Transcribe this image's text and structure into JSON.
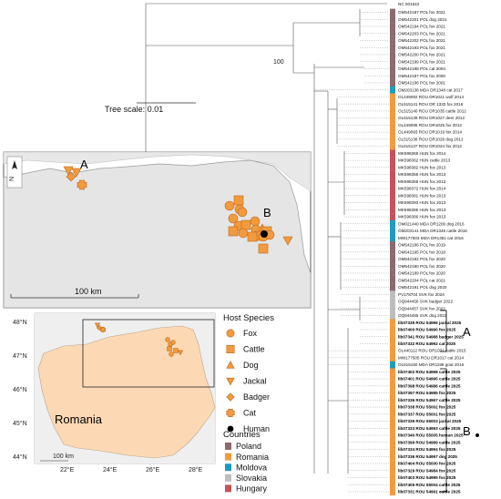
{
  "tree": {
    "root_label": "NC 001542",
    "scale_label": "Tree scale: 0.01",
    "tips": [
      {
        "label": "OM542187 POL fox 2021",
        "country": "Poland",
        "bold": false
      },
      {
        "label": "OM542201 POL dog 2021",
        "country": "Poland",
        "bold": false
      },
      {
        "label": "OM542194 POL fox 2021",
        "country": "Poland",
        "bold": false
      },
      {
        "label": "OM542203 POL fox 2021",
        "country": "Poland",
        "bold": false
      },
      {
        "label": "OM542202 POL fox 2021",
        "country": "Poland",
        "bold": false
      },
      {
        "label": "OM542193 POL fox 2021",
        "country": "Poland",
        "bold": false
      },
      {
        "label": "OM542200 POL fox 2021",
        "country": "Poland",
        "bold": false
      },
      {
        "label": "OM542199 POL fox 2021",
        "country": "Poland",
        "bold": false
      },
      {
        "label": "OM542198 POL cat 2004",
        "country": "Poland",
        "bold": false
      },
      {
        "label": "OM542197 POL fox 2000",
        "country": "Poland",
        "bold": false
      },
      {
        "label": "OM542196 POL fox 2001",
        "country": "Poland",
        "bold": false
      },
      {
        "label": "OM203138 MDA DR1348 cat 2017",
        "country": "Moldova",
        "bold": false
      },
      {
        "label": "OL449092 ROU DR1021 wolf 2014",
        "country": "Romania",
        "bold": false
      },
      {
        "label": "OL515141 ROU DR 1333 fox 2016",
        "country": "Romania",
        "bold": false
      },
      {
        "label": "OL515140 ROU DR1035 cattle 2012",
        "country": "Romania",
        "bold": false
      },
      {
        "label": "OL515139 ROU DR1027 deer 2012",
        "country": "Romania",
        "bold": false
      },
      {
        "label": "OL449095 ROU DR1025 fox 2012",
        "country": "Romania",
        "bold": false
      },
      {
        "label": "OL449093 ROU DR1019 fox 2014",
        "country": "Romania",
        "bold": false
      },
      {
        "label": "OL515138 ROU DR1026 dog 2012",
        "country": "Romania",
        "bold": false
      },
      {
        "label": "OL515137 ROU DR1024 fox 2012",
        "country": "Romania",
        "bold": false
      },
      {
        "label": "MK598368 HUN fox 2014",
        "country": "Hungary",
        "bold": false
      },
      {
        "label": "MK598362 HUN cattle 2013",
        "country": "Hungary",
        "bold": false
      },
      {
        "label": "MK598382 HUN fox 2013",
        "country": "Hungary",
        "bold": false
      },
      {
        "label": "MK598356 HUN fox 2013",
        "country": "Hungary",
        "bold": false
      },
      {
        "label": "MK598358 HUN fox 2013",
        "country": "Hungary",
        "bold": false
      },
      {
        "label": "MK598372 HUN fox 2014",
        "country": "Hungary",
        "bold": false
      },
      {
        "label": "MK598381 HUN fox 2013",
        "country": "Hungary",
        "bold": false
      },
      {
        "label": "MK598393 HUN fox 2013",
        "country": "Hungary",
        "bold": false
      },
      {
        "label": "MK598385 HUN fox 2013",
        "country": "Hungary",
        "bold": false
      },
      {
        "label": "MK598386 HUN fox 2013",
        "country": "Hungary",
        "bold": false
      },
      {
        "label": "OM021440 MDA DR1200 dog 2016",
        "country": "Moldova",
        "bold": false
      },
      {
        "label": "OM203141 MDA DR1346 cattle 2016",
        "country": "Moldova",
        "bold": false
      },
      {
        "label": "MW177503 MDA DR1351 cat 2016",
        "country": "Moldova",
        "bold": false
      },
      {
        "label": "OM542186 POL fox 2019",
        "country": "Poland",
        "bold": false
      },
      {
        "label": "OM542195 POL fox 2018",
        "country": "Poland",
        "bold": false
      },
      {
        "label": "OM542192 POL fox 2020",
        "country": "Poland",
        "bold": false
      },
      {
        "label": "OM542190 POL fox 2020",
        "country": "Poland",
        "bold": false
      },
      {
        "label": "OM542189 POL fox 2020",
        "country": "Poland",
        "bold": false
      },
      {
        "label": "OM542204 POL cat 2021",
        "country": "Poland",
        "bold": false
      },
      {
        "label": "OM542191 POL dog 2020",
        "country": "Poland",
        "bold": false
      },
      {
        "label": "PV178704 SVK fox 2024",
        "country": "Slovakia",
        "bold": false
      },
      {
        "label": "OQ944456 SVK badger 2022",
        "country": "Slovakia",
        "bold": false
      },
      {
        "label": "OQ944457 SVK fox 2022",
        "country": "Slovakia",
        "bold": false
      },
      {
        "label": "OQ944455 SVK dog 2022",
        "country": "Slovakia",
        "bold": false
      },
      {
        "label": "lib07335 ROU 54996 jackal 2025",
        "country": "Romania",
        "bold": true
      },
      {
        "label": "lib07400 ROU 54990 fox 2025",
        "country": "Romania",
        "bold": true
      },
      {
        "label": "lib07341 ROU 54988 badger 2025",
        "country": "Romania",
        "bold": true
      },
      {
        "label": "lib07332 ROU 54992 cat 2025",
        "country": "Romania",
        "bold": true
      },
      {
        "label": "OL440112 ROU DR1031 cattle 2015",
        "country": "Romania",
        "bold": false
      },
      {
        "label": "MW177505 ROU DR1017 cat 2014",
        "country": "Romania",
        "bold": false
      },
      {
        "label": "OL515150 MDA DR1198 goat 2016",
        "country": "Moldova",
        "bold": false
      },
      {
        "label": "lib07402 ROU 54998 cattle 2025",
        "country": "Romania",
        "bold": true
      },
      {
        "label": "lib07401 ROU 54995 cattle 2025",
        "country": "Romania",
        "bold": true
      },
      {
        "label": "lib07398 ROU 54986 cattle 2025",
        "country": "Romania",
        "bold": true
      },
      {
        "label": "lib07397 ROU 54985 fox 2025",
        "country": "Romania",
        "bold": true
      },
      {
        "label": "lib07336 ROU 54967 cattle 2025",
        "country": "Romania",
        "bold": true
      },
      {
        "label": "lib07338 ROU 55002 fox 2025",
        "country": "Romania",
        "bold": true
      },
      {
        "label": "lib07337 ROU 55001 fox 2025",
        "country": "Romania",
        "bold": true
      },
      {
        "label": "lib07339 ROU 55003 jackal 2025",
        "country": "Romania",
        "bold": true
      },
      {
        "label": "lib07333 ROU 54993 cattle 2025",
        "country": "Romania",
        "bold": true
      },
      {
        "label": "lib07340 ROU 55005 human 2025",
        "country": "Romania",
        "bold": true,
        "human": true
      },
      {
        "label": "lib07399 ROU 54989 cattle 2025",
        "country": "Romania",
        "bold": true
      },
      {
        "label": "lib07334 ROU 54994 fox 2025",
        "country": "Romania",
        "bold": true
      },
      {
        "label": "lib07336 ROU 54997 dog 2025",
        "country": "Romania",
        "bold": true
      },
      {
        "label": "lib07404 ROU 55000 fox 2025",
        "country": "Romania",
        "bold": true
      },
      {
        "label": "lib07329 ROU 54984 fox 2025",
        "country": "Romania",
        "bold": true
      },
      {
        "label": "lib07403 ROU 54999 fox 2025",
        "country": "Romania",
        "bold": true
      },
      {
        "label": "lib07405 ROU 55004 cattle 2025",
        "country": "Romania",
        "bold": true
      },
      {
        "label": "lib07331 ROU 54991 cattle 2025",
        "country": "Romania",
        "bold": true
      }
    ],
    "clade_labels": [
      "A",
      "B"
    ]
  },
  "map_inset": {
    "scale_label": "100 km",
    "north_label": "N",
    "cluster_labels": [
      "A",
      "B"
    ]
  },
  "overview_map": {
    "country_label": "Romania",
    "scale_label": "100 km",
    "lat_ticks": [
      "48°N",
      "47°N",
      "46°N",
      "45°N",
      "44°N"
    ],
    "lon_ticks": [
      "22°E",
      "24°E",
      "26°E",
      "28°E"
    ]
  },
  "legend": {
    "host_title": "Host Species",
    "hosts": [
      {
        "label": "Fox",
        "shape": "circle"
      },
      {
        "label": "Cattle",
        "shape": "square"
      },
      {
        "label": "Dog",
        "shape": "triangle-up"
      },
      {
        "label": "Jackal",
        "shape": "triangle-down"
      },
      {
        "label": "Badger",
        "shape": "diamond"
      },
      {
        "label": "Cat",
        "shape": "plus"
      },
      {
        "label": "Human",
        "shape": "dot-black"
      }
    ],
    "countries_title": "Countries",
    "countries": [
      {
        "label": "Poland",
        "color": "#8c6a6f"
      },
      {
        "label": "Romania",
        "color": "#f39a3d"
      },
      {
        "label": "Moldova",
        "color": "#1f9bbf"
      },
      {
        "label": "Slovakia",
        "color": "#bdbdbd"
      },
      {
        "label": "Hungary",
        "color": "#c8525a"
      }
    ]
  },
  "colors": {
    "marker": "#f39a3d",
    "marker_stroke": "#b86a1f",
    "romania_fill": "#fcd9b4",
    "land_gray": "#e5e5e5"
  }
}
